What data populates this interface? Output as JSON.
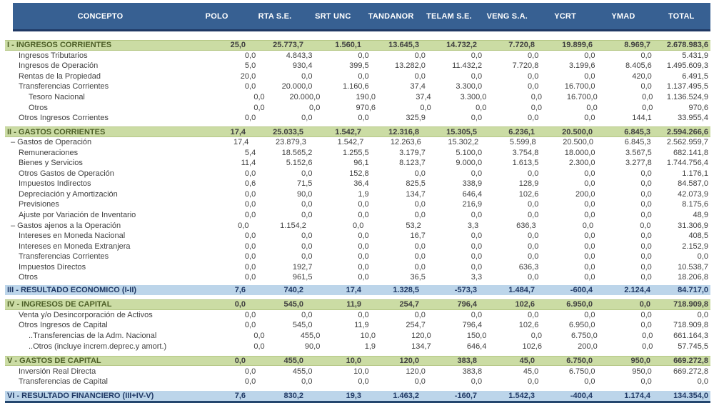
{
  "colors": {
    "header_bg": "#376092",
    "header_border": "#1f3864",
    "band_green": "#cbdca4",
    "band_blue": "#bcd5ea",
    "section_text": "#4c5e26",
    "result_text": "#1f3864",
    "body_text": "#3f3f3f"
  },
  "table": {
    "columns": [
      "CONCEPTO",
      "POLO",
      "RTA S.E.",
      "SRT UNC",
      "TANDANOR",
      "TELAM S.E.",
      "VENG S.A.",
      "YCRT",
      "YMAD",
      "TOTAL"
    ],
    "sections": [
      {
        "rows": [
          {
            "style": "section",
            "indent": "0",
            "label": "I - INGRESOS CORRIENTES",
            "values": [
              "25,0",
              "25.773,7",
              "1.560,1",
              "13.645,3",
              "14.732,2",
              "7.720,8",
              "19.899,6",
              "8.969,7",
              "2.678.983,6"
            ]
          },
          {
            "style": "item",
            "indent": "1",
            "label": "Ingresos Tributarios",
            "values": [
              "0,0",
              "4.843,3",
              "0,0",
              "0,0",
              "0,0",
              "0,0",
              "0,0",
              "0,0",
              "5.431,9"
            ]
          },
          {
            "style": "item",
            "indent": "1",
            "label": "Ingresos de Operación",
            "values": [
              "5,0",
              "930,4",
              "399,5",
              "13.282,0",
              "11.432,2",
              "7.720,8",
              "3.199,6",
              "8.405,6",
              "1.495.609,3"
            ]
          },
          {
            "style": "item",
            "indent": "1",
            "label": "Rentas de la Propiedad",
            "values": [
              "20,0",
              "0,0",
              "0,0",
              "0,0",
              "0,0",
              "0,0",
              "0,0",
              "420,0",
              "6.491,5"
            ]
          },
          {
            "style": "item",
            "indent": "1",
            "label": "Transferencias Corrientes",
            "values": [
              "0,0",
              "20.000,0",
              "1.160,6",
              "37,4",
              "3.300,0",
              "0,0",
              "16.700,0",
              "0,0",
              "1.137.495,5"
            ]
          },
          {
            "style": "item",
            "indent": "2",
            "label": "Tesoro Nacional",
            "values": [
              "0,0",
              "20.000,0",
              "190,0",
              "37,4",
              "3.300,0",
              "0,0",
              "16.700,0",
              "0,0",
              "1.136.524,9"
            ]
          },
          {
            "style": "item",
            "indent": "2",
            "label": "Otros",
            "values": [
              "0,0",
              "0,0",
              "970,6",
              "0,0",
              "0,0",
              "0,0",
              "0,0",
              "0,0",
              "970,6"
            ]
          },
          {
            "style": "item",
            "indent": "1",
            "label": "Otros Ingresos Corrientes",
            "values": [
              "0,0",
              "0,0",
              "0,0",
              "325,9",
              "0,0",
              "0,0",
              "0,0",
              "144,1",
              "33.955,4"
            ]
          }
        ]
      },
      {
        "rows": [
          {
            "style": "section",
            "indent": "0",
            "label": "II - GASTOS CORRIENTES",
            "values": [
              "17,4",
              "25.033,5",
              "1.542,7",
              "12.316,8",
              "15.305,5",
              "6.236,1",
              "20.500,0",
              "6.845,3",
              "2.594.266,6"
            ]
          },
          {
            "style": "item",
            "indent": "d",
            "label": "– Gastos de Operación",
            "values": [
              "17,4",
              "23.879,3",
              "1.542,7",
              "12.263,6",
              "15.302,2",
              "5.599,8",
              "20.500,0",
              "6.845,3",
              "2.562.959,7"
            ]
          },
          {
            "style": "item",
            "indent": "1",
            "label": "Remuneraciones",
            "values": [
              "5,4",
              "18.565,2",
              "1.255,5",
              "3.179,7",
              "5.100,0",
              "3.754,8",
              "18.000,0",
              "3.567,5",
              "682.141,8"
            ]
          },
          {
            "style": "item",
            "indent": "1",
            "label": "Bienes y Servicios",
            "values": [
              "11,4",
              "5.152,6",
              "96,1",
              "8.123,7",
              "9.000,0",
              "1.613,5",
              "2.300,0",
              "3.277,8",
              "1.744.756,4"
            ]
          },
          {
            "style": "item",
            "indent": "1",
            "label": "Otros Gastos de Operación",
            "values": [
              "0,0",
              "0,0",
              "152,8",
              "0,0",
              "0,0",
              "0,0",
              "0,0",
              "0,0",
              "1.176,1"
            ]
          },
          {
            "style": "item",
            "indent": "1",
            "label": "Impuestos Indirectos",
            "values": [
              "0,6",
              "71,5",
              "36,4",
              "825,5",
              "338,9",
              "128,9",
              "0,0",
              "0,0",
              "84.587,0"
            ]
          },
          {
            "style": "item",
            "indent": "1",
            "label": "Depreciación y Amortización",
            "values": [
              "0,0",
              "90,0",
              "1,9",
              "134,7",
              "646,4",
              "102,6",
              "200,0",
              "0,0",
              "42.073,9"
            ]
          },
          {
            "style": "item",
            "indent": "1",
            "label": "Previsiones",
            "values": [
              "0,0",
              "0,0",
              "0,0",
              "0,0",
              "216,9",
              "0,0",
              "0,0",
              "0,0",
              "8.175,6"
            ]
          },
          {
            "style": "item",
            "indent": "1",
            "label": "Ajuste por Variación de Inventario",
            "values": [
              "0,0",
              "0,0",
              "0,0",
              "0,0",
              "0,0",
              "0,0",
              "0,0",
              "0,0",
              "48,9"
            ]
          },
          {
            "style": "item",
            "indent": "d",
            "label": "– Gastos ajenos a la Operación",
            "values": [
              "0,0",
              "1.154,2",
              "0,0",
              "53,2",
              "3,3",
              "636,3",
              "0,0",
              "0,0",
              "31.306,9"
            ]
          },
          {
            "style": "item",
            "indent": "1",
            "label": "Intereses en Moneda Nacional",
            "values": [
              "0,0",
              "0,0",
              "0,0",
              "16,7",
              "0,0",
              "0,0",
              "0,0",
              "0,0",
              "408,5"
            ]
          },
          {
            "style": "item",
            "indent": "1",
            "label": "Intereses en Moneda Extranjera",
            "values": [
              "0,0",
              "0,0",
              "0,0",
              "0,0",
              "0,0",
              "0,0",
              "0,0",
              "0,0",
              "2.152,9"
            ]
          },
          {
            "style": "item",
            "indent": "1",
            "label": "Transferencias Corrientes",
            "values": [
              "0,0",
              "0,0",
              "0,0",
              "0,0",
              "0,0",
              "0,0",
              "0,0",
              "0,0",
              "0,0"
            ]
          },
          {
            "style": "item",
            "indent": "1",
            "label": "Impuestos Directos",
            "values": [
              "0,0",
              "192,7",
              "0,0",
              "0,0",
              "0,0",
              "636,3",
              "0,0",
              "0,0",
              "10.538,7"
            ]
          },
          {
            "style": "item",
            "indent": "1",
            "label": "Otros",
            "values": [
              "0,0",
              "961,5",
              "0,0",
              "36,5",
              "3,3",
              "0,0",
              "0,0",
              "0,0",
              "18.206,8"
            ]
          }
        ]
      },
      {
        "rows": [
          {
            "style": "result",
            "indent": "0",
            "label": "III - RESULTADO ECONÓMICO (I-II)",
            "values": [
              "7,6",
              "740,2",
              "17,4",
              "1.328,5",
              "-573,3",
              "1.484,7",
              "-600,4",
              "2.124,4",
              "84.717,0"
            ]
          }
        ]
      },
      {
        "rows": [
          {
            "style": "section",
            "indent": "0",
            "label": "IV - INGRESOS DE CAPITAL",
            "values": [
              "0,0",
              "545,0",
              "11,9",
              "254,7",
              "796,4",
              "102,6",
              "6.950,0",
              "0,0",
              "718.909,8"
            ]
          },
          {
            "style": "item",
            "indent": "1",
            "label": "Venta y/o Desincorporación de Activos",
            "values": [
              "0,0",
              "0,0",
              "0,0",
              "0,0",
              "0,0",
              "0,0",
              "0,0",
              "0,0",
              "0,0"
            ]
          },
          {
            "style": "item",
            "indent": "1",
            "label": "Otros Ingresos de Capital",
            "values": [
              "0,0",
              "545,0",
              "11,9",
              "254,7",
              "796,4",
              "102,6",
              "6.950,0",
              "0,0",
              "718.909,8"
            ]
          },
          {
            "style": "item",
            "indent": "2",
            "label": "..Transferencias de la Adm. Nacional",
            "values": [
              "0,0",
              "455,0",
              "10,0",
              "120,0",
              "150,0",
              "0,0",
              "6.750,0",
              "0,0",
              "661.164,3"
            ]
          },
          {
            "style": "item",
            "indent": "2",
            "label": "..Otros (incluye increm.deprec.y amort.)",
            "values": [
              "0,0",
              "90,0",
              "1,9",
              "134,7",
              "646,4",
              "102,6",
              "200,0",
              "0,0",
              "57.745,5"
            ]
          }
        ]
      },
      {
        "rows": [
          {
            "style": "section",
            "indent": "0",
            "label": "V - GASTOS DE CAPITAL",
            "values": [
              "0,0",
              "455,0",
              "10,0",
              "120,0",
              "383,8",
              "45,0",
              "6.750,0",
              "950,0",
              "669.272,8"
            ]
          },
          {
            "style": "item",
            "indent": "1",
            "label": "Inversión Real Directa",
            "values": [
              "0,0",
              "455,0",
              "10,0",
              "120,0",
              "383,8",
              "45,0",
              "6.750,0",
              "950,0",
              "669.272,8"
            ]
          },
          {
            "style": "item",
            "indent": "1",
            "label": "Transferencias de Capital",
            "values": [
              "0,0",
              "0,0",
              "0,0",
              "0,0",
              "0,0",
              "0,0",
              "0,0",
              "0,0",
              "0,0"
            ]
          }
        ]
      },
      {
        "rows": [
          {
            "style": "result",
            "indent": "0",
            "label": "VI - RESULTADO FINANCIERO (III+IV-V)",
            "values": [
              "7,6",
              "830,2",
              "19,3",
              "1.463,2",
              "-160,7",
              "1.542,3",
              "-400,4",
              "1.174,4",
              "134.354,0"
            ]
          }
        ]
      }
    ]
  }
}
